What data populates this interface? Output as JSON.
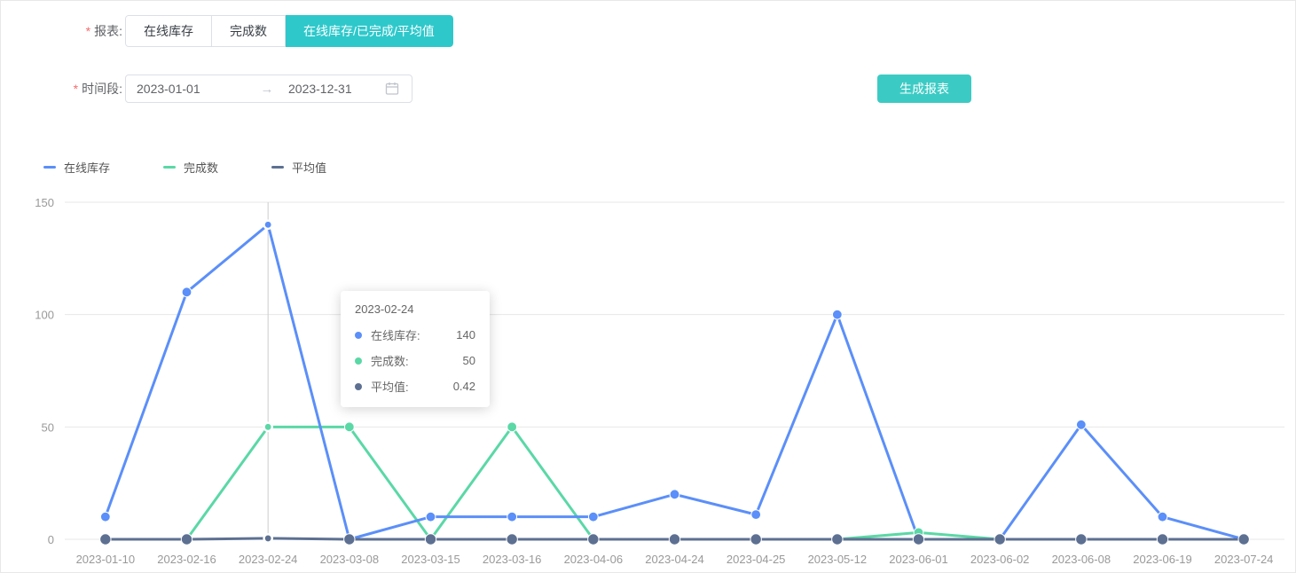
{
  "form": {
    "required_marker": "*",
    "report": {
      "label": "报表:",
      "tabs": [
        {
          "label": "在线库存",
          "selected": false
        },
        {
          "label": "完成数",
          "selected": false
        },
        {
          "label": "在线库存/已完成/平均值",
          "selected": true
        }
      ]
    },
    "time": {
      "label": "时间段:",
      "date_start": "2023-01-01",
      "separator": "→",
      "date_end": "2023-12-31"
    },
    "generate_button": "生成报表"
  },
  "colors": {
    "tab_selected": "#2ec8cb",
    "button": "#3ccbc4",
    "series_blue": "#5B8FF9",
    "series_green": "#5AD8A6",
    "series_navy": "#5D7092",
    "grid": "#e7e7e7",
    "axis_text": "#999999",
    "crosshair": "#cccccc",
    "required": "#f56c6c"
  },
  "chart_data": {
    "type": "line",
    "categories": [
      "2023-01-10",
      "2023-02-16",
      "2023-02-24",
      "2023-03-08",
      "2023-03-15",
      "2023-03-16",
      "2023-04-06",
      "2023-04-24",
      "2023-04-25",
      "2023-05-12",
      "2023-06-01",
      "2023-06-02",
      "2023-06-08",
      "2023-06-19",
      "2023-07-24"
    ],
    "series": [
      {
        "name": "在线库存",
        "color": "#5B8FF9",
        "values": [
          10,
          110,
          140,
          0,
          10,
          10,
          10,
          20,
          11,
          100,
          0,
          0,
          51,
          10,
          0
        ]
      },
      {
        "name": "完成数",
        "color": "#5AD8A6",
        "values": [
          0,
          0,
          50,
          50,
          0,
          50,
          0,
          0,
          0,
          0,
          3,
          0,
          0,
          0,
          0
        ]
      },
      {
        "name": "平均值",
        "color": "#5D7092",
        "values": [
          0,
          0,
          0.42,
          0,
          0,
          0,
          0,
          0,
          0,
          0,
          0,
          0,
          0,
          0,
          0
        ]
      }
    ],
    "ylim": [
      0,
      150
    ],
    "yticks": [
      0,
      50,
      100,
      150
    ],
    "grid": true,
    "legend_position": "top-left",
    "active_index": 2
  },
  "tooltip": {
    "title": "2023-02-24",
    "items": [
      {
        "name": "在线库存:",
        "value": "140",
        "color": "#5B8FF9"
      },
      {
        "name": "完成数:",
        "value": "50",
        "color": "#5AD8A6"
      },
      {
        "name": "平均值:",
        "value": "0.42",
        "color": "#5D7092"
      }
    ]
  }
}
